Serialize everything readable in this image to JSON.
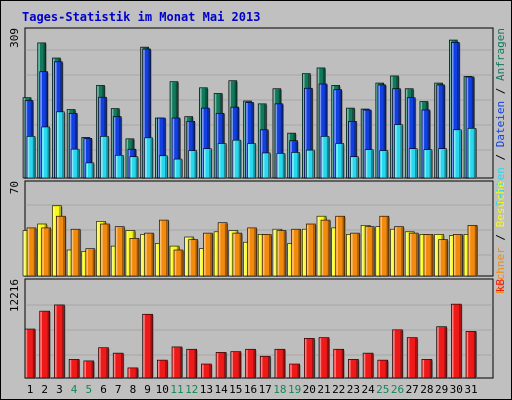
{
  "title": "Tages-Statistik im Monat Mai 2013",
  "colors": {
    "background": "#c0c0c0",
    "panel": "#bebebe",
    "title": "#0000cc",
    "hits": "#127a5c",
    "files": "#1240e0",
    "pages": "#28d8ee",
    "visits": "#f8f81a",
    "sites": "#f28a0e",
    "kbytes": "#ee1a1a",
    "weekend_label": "#118855",
    "weekday_label": "#000000"
  },
  "right_labels": {
    "top": [
      "Anfragen",
      "Dateien",
      "Seiten"
    ],
    "middle": [
      "Besuche",
      "Rechner"
    ],
    "bottom": [
      "kB"
    ]
  },
  "chart_data": [
    {
      "type": "bar",
      "name": "top-panel",
      "ymax_label": "309",
      "ylim": [
        0,
        309
      ],
      "categories": [
        "1",
        "2",
        "3",
        "4",
        "5",
        "6",
        "7",
        "8",
        "9",
        "10",
        "11",
        "12",
        "13",
        "14",
        "15",
        "16",
        "17",
        "18",
        "19",
        "20",
        "21",
        "22",
        "23",
        "24",
        "25",
        "26",
        "27",
        "28",
        "29",
        "30",
        "31"
      ],
      "series": [
        {
          "name": "Anfragen",
          "key": "hits",
          "values": [
            170,
            286,
            254,
            145,
            86,
            196,
            147,
            83,
            277,
            127,
            204,
            130,
            191,
            179,
            206,
            163,
            157,
            189,
            95,
            221,
            233,
            196,
            148,
            146,
            201,
            216,
            189,
            162,
            201,
            292,
            215
          ]
        },
        {
          "name": "Dateien",
          "key": "files",
          "values": [
            164,
            225,
            246,
            137,
            84,
            171,
            130,
            61,
            273,
            127,
            127,
            120,
            148,
            137,
            150,
            160,
            102,
            157,
            79,
            190,
            199,
            187,
            120,
            144,
            197,
            189,
            170,
            144,
            197,
            287,
            214
          ]
        },
        {
          "name": "Seiten",
          "key": "pages",
          "values": [
            88,
            108,
            140,
            61,
            32,
            88,
            48,
            45,
            85,
            47,
            40,
            58,
            62,
            73,
            80,
            73,
            53,
            52,
            54,
            59,
            88,
            73,
            45,
            60,
            58,
            113,
            62,
            60,
            62,
            102,
            105
          ]
        }
      ]
    },
    {
      "type": "bar",
      "name": "middle-panel",
      "ymax_label": "70",
      "ylim": [
        0,
        70
      ],
      "series": [
        {
          "name": "Besuche",
          "key": "visits",
          "values": [
            35,
            40,
            54,
            20,
            19,
            42,
            23,
            35,
            32,
            25,
            23,
            30,
            21,
            34,
            35,
            26,
            32,
            36,
            25,
            36,
            46,
            37,
            32,
            39,
            38,
            36,
            34,
            32,
            32,
            31,
            32
          ]
        },
        {
          "name": "Rechner",
          "key": "sites",
          "values": [
            37,
            37,
            46,
            36,
            21,
            40,
            38,
            29,
            33,
            43,
            20,
            28,
            33,
            41,
            33,
            37,
            32,
            35,
            36,
            40,
            43,
            46,
            33,
            38,
            46,
            38,
            33,
            32,
            28,
            32,
            39
          ]
        }
      ]
    },
    {
      "type": "bar",
      "name": "bottom-panel",
      "ymax_label": "12216",
      "ylim": [
        0,
        12216
      ],
      "series": [
        {
          "name": "kB",
          "key": "kbytes",
          "values": [
            6300,
            8600,
            9400,
            2400,
            2200,
            3900,
            3200,
            1300,
            8200,
            2300,
            4000,
            3700,
            1800,
            3300,
            3400,
            3700,
            2800,
            3700,
            1800,
            5100,
            5200,
            3700,
            2400,
            3200,
            2300,
            6200,
            5200,
            2400,
            6600,
            9500,
            6000
          ]
        }
      ]
    }
  ],
  "weekend_days": [
    4,
    5,
    11,
    12,
    18,
    19,
    25,
    26
  ]
}
